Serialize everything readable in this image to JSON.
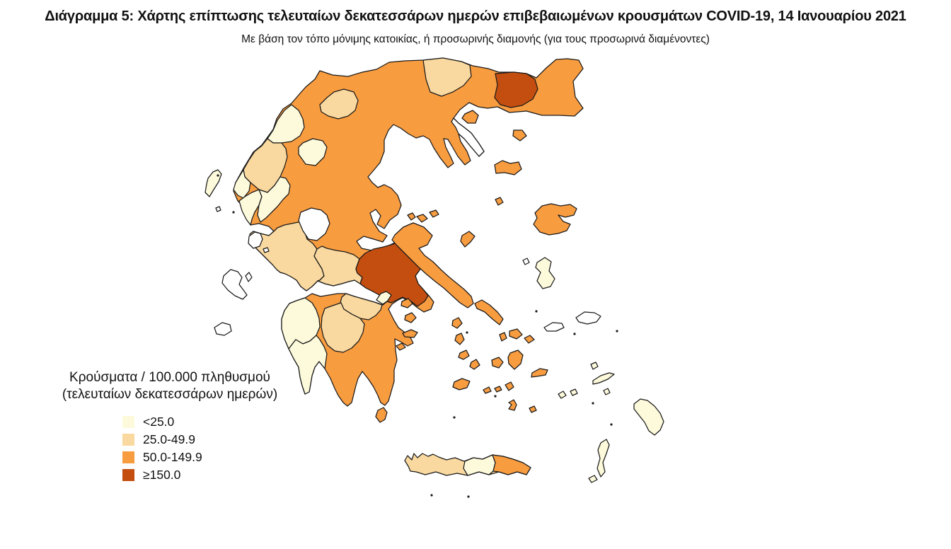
{
  "header": {
    "title": "Διάγραμμα 5: Χάρτης επίπτωσης τελευταίων δεκατεσσάρων ημερών επιβεβαιωμένων κρουσμάτων COVID-19, 14 Ιανουαρίου 2021",
    "subtitle": "Με βάση τον τόπο μόνιμης κατοικίας, ή προσωρινής διαμονής (για τους προσωρινά διαμένοντες)"
  },
  "legend": {
    "title_line1": "Κρούσματα / 100.000 πληθυσμού",
    "title_line2": "(τελευταίων δεκατεσσάρων ημερών)",
    "colors": {
      "c0": "#ffffff",
      "c1": "#fdfadb",
      "c2": "#fad9a0",
      "c3": "#f89c40",
      "c4": "#c44e10",
      "islet": "#1a1a1a"
    },
    "classes": [
      {
        "key": "c1",
        "label": "<25.0"
      },
      {
        "key": "c2",
        "label": "25.0-49.9"
      },
      {
        "key": "c3",
        "label": "50.0-149.9"
      },
      {
        "key": "c4",
        "label": "≥150.0"
      }
    ]
  },
  "map": {
    "regions": [
      {
        "id": "mainland-base",
        "category": "c3"
      },
      {
        "id": "aitoloakarnania",
        "category": "c2"
      },
      {
        "id": "fokida",
        "category": "c2"
      },
      {
        "id": "evrytania",
        "category": "c0"
      },
      {
        "id": "viotia-attica",
        "category": "c4"
      },
      {
        "id": "loutraki",
        "category": "c1"
      },
      {
        "id": "korinthia",
        "category": "c2"
      },
      {
        "id": "arcadia",
        "category": "c2"
      },
      {
        "id": "ilia",
        "category": "c1"
      },
      {
        "id": "messinia",
        "category": "c1"
      },
      {
        "id": "zagori",
        "category": "c1"
      },
      {
        "id": "ioannina",
        "category": "c2"
      },
      {
        "id": "thesprotia",
        "category": "c1"
      },
      {
        "id": "preveza",
        "category": "c1"
      },
      {
        "id": "arta",
        "category": "c1"
      },
      {
        "id": "grevena",
        "category": "c1"
      },
      {
        "id": "florina",
        "category": "c2"
      },
      {
        "id": "serres",
        "category": "c2"
      },
      {
        "id": "kavala",
        "category": "c4"
      },
      {
        "id": "athos",
        "category": "c0"
      },
      {
        "id": "corfu",
        "category": "c1"
      },
      {
        "id": "paxoi",
        "category": "c0"
      },
      {
        "id": "lefkada",
        "category": "c0"
      },
      {
        "id": "meganisi",
        "category": "c0"
      },
      {
        "id": "kefalonia",
        "category": "c0"
      },
      {
        "id": "ithaki",
        "category": "c0"
      },
      {
        "id": "zakynthos",
        "category": "c0"
      },
      {
        "id": "kythira",
        "category": "c3"
      },
      {
        "id": "thasos",
        "category": "c3"
      },
      {
        "id": "samothraki",
        "category": "c3"
      },
      {
        "id": "limnos",
        "category": "c3"
      },
      {
        "id": "agios-efstratios",
        "category": "c3"
      },
      {
        "id": "lesvos",
        "category": "c3"
      },
      {
        "id": "psara",
        "category": "c0"
      },
      {
        "id": "chios",
        "category": "c1"
      },
      {
        "id": "skyros",
        "category": "c3"
      },
      {
        "id": "skiathos",
        "category": "c3"
      },
      {
        "id": "skopelos",
        "category": "c3"
      },
      {
        "id": "alonnisos",
        "category": "c3"
      },
      {
        "id": "samos",
        "category": "c0"
      },
      {
        "id": "ikaria",
        "category": "c0"
      },
      {
        "id": "evia",
        "category": "c3"
      },
      {
        "id": "salamina",
        "category": "c3"
      },
      {
        "id": "aegina",
        "category": "c3"
      },
      {
        "id": "hydra",
        "category": "c3"
      },
      {
        "id": "spetses",
        "category": "c3"
      },
      {
        "id": "andros",
        "category": "c3"
      },
      {
        "id": "tinos",
        "category": "c3"
      },
      {
        "id": "mykonos",
        "category": "c3"
      },
      {
        "id": "syros",
        "category": "c3"
      },
      {
        "id": "kea",
        "category": "c3"
      },
      {
        "id": "kythnos",
        "category": "c3"
      },
      {
        "id": "serifos",
        "category": "c3"
      },
      {
        "id": "sifnos",
        "category": "c3"
      },
      {
        "id": "milos",
        "category": "c3"
      },
      {
        "id": "paros",
        "category": "c3"
      },
      {
        "id": "naxos",
        "category": "c3"
      },
      {
        "id": "ios",
        "category": "c3"
      },
      {
        "id": "amorgos",
        "category": "c3"
      },
      {
        "id": "santorini",
        "category": "c3"
      },
      {
        "id": "anafi",
        "category": "c3"
      },
      {
        "id": "folegandros",
        "category": "c3"
      },
      {
        "id": "sikinos",
        "category": "c3"
      },
      {
        "id": "leros",
        "category": "c1"
      },
      {
        "id": "patmos",
        "category": "c1"
      },
      {
        "id": "kos",
        "category": "c1"
      },
      {
        "id": "nisyros",
        "category": "c1"
      },
      {
        "id": "astypalaia",
        "category": "c1"
      },
      {
        "id": "rhodes",
        "category": "c1"
      },
      {
        "id": "karpathos",
        "category": "c1"
      },
      {
        "id": "kasos",
        "category": "c1"
      },
      {
        "id": "crete-chania-rethymno",
        "category": "c2"
      },
      {
        "id": "crete-heraklion",
        "category": "c1"
      },
      {
        "id": "crete-lasithi",
        "category": "c3"
      }
    ]
  }
}
